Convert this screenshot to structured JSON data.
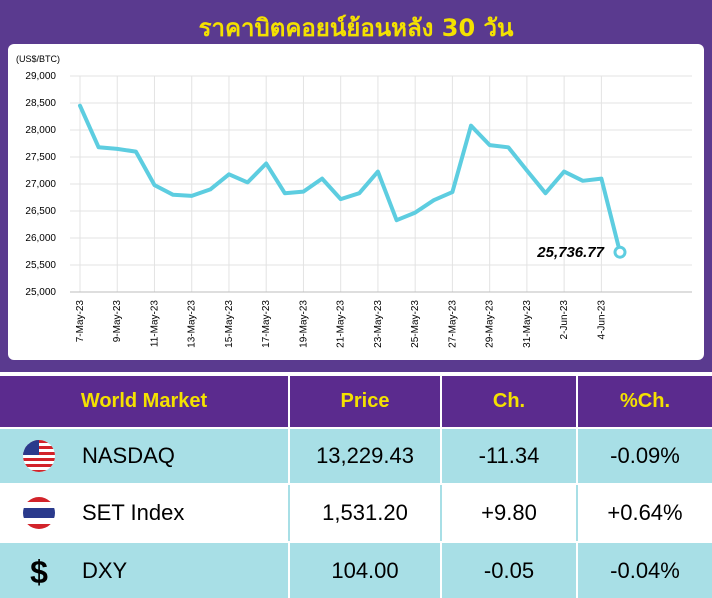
{
  "chart_data": {
    "type": "line",
    "title": "ราคาบิตคอยน์ย้อนหลัง 30 วัน",
    "unit_label": "(US$/BTC)",
    "ylim": [
      25000,
      29000
    ],
    "yticks": [
      "29,000",
      "28,500",
      "28,000",
      "27,500",
      "27,000",
      "26,500",
      "26,000",
      "25,500",
      "25,000"
    ],
    "ytick_values": [
      29000,
      28500,
      28000,
      27500,
      27000,
      26500,
      26000,
      25500,
      25000
    ],
    "x_labels": [
      "7-May-23",
      "9-May-23",
      "11-May-23",
      "13-May-23",
      "15-May-23",
      "17-May-23",
      "19-May-23",
      "21-May-23",
      "23-May-23",
      "25-May-23",
      "27-May-23",
      "29-May-23",
      "31-May-23",
      "2-Jun-23",
      "4-Jun-23"
    ],
    "x": [
      "7-May-23",
      "8-May-23",
      "9-May-23",
      "10-May-23",
      "11-May-23",
      "12-May-23",
      "13-May-23",
      "14-May-23",
      "15-May-23",
      "16-May-23",
      "17-May-23",
      "18-May-23",
      "19-May-23",
      "20-May-23",
      "21-May-23",
      "22-May-23",
      "23-May-23",
      "24-May-23",
      "25-May-23",
      "26-May-23",
      "27-May-23",
      "28-May-23",
      "29-May-23",
      "30-May-23",
      "31-May-23",
      "1-Jun-23",
      "2-Jun-23",
      "3-Jun-23",
      "4-Jun-23",
      "5-Jun-23"
    ],
    "values": [
      28450,
      27680,
      27650,
      27600,
      26980,
      26800,
      26780,
      26900,
      27180,
      27030,
      27380,
      26830,
      26860,
      27100,
      26720,
      26830,
      27230,
      26330,
      26470,
      26700,
      26850,
      28080,
      27720,
      27680,
      27250,
      26830,
      27230,
      27060,
      27100,
      25736.77
    ],
    "last_label": "25,736.77",
    "line_color": "#5dcde0",
    "grid": true
  },
  "table": {
    "headers": [
      "World Market",
      "Price",
      "Ch.",
      "%Ch."
    ],
    "rows": [
      {
        "icon": "us-flag-icon",
        "name": "NASDAQ",
        "price": "13,229.43",
        "ch": "-11.34",
        "pct": "-0.09%"
      },
      {
        "icon": "thai-flag-icon",
        "name": "SET Index",
        "price": "1,531.20",
        "ch": "+9.80",
        "pct": "+0.64%"
      },
      {
        "icon": "dollar-icon",
        "name": "DXY",
        "price": "104.00",
        "ch": "-0.05",
        "pct": "-0.04%"
      }
    ]
  },
  "colors": {
    "frame": "#5a3a8f",
    "header_bg": "#5b2b8e",
    "header_text": "#f4e100",
    "row_cyan": "#a8dfe6"
  }
}
